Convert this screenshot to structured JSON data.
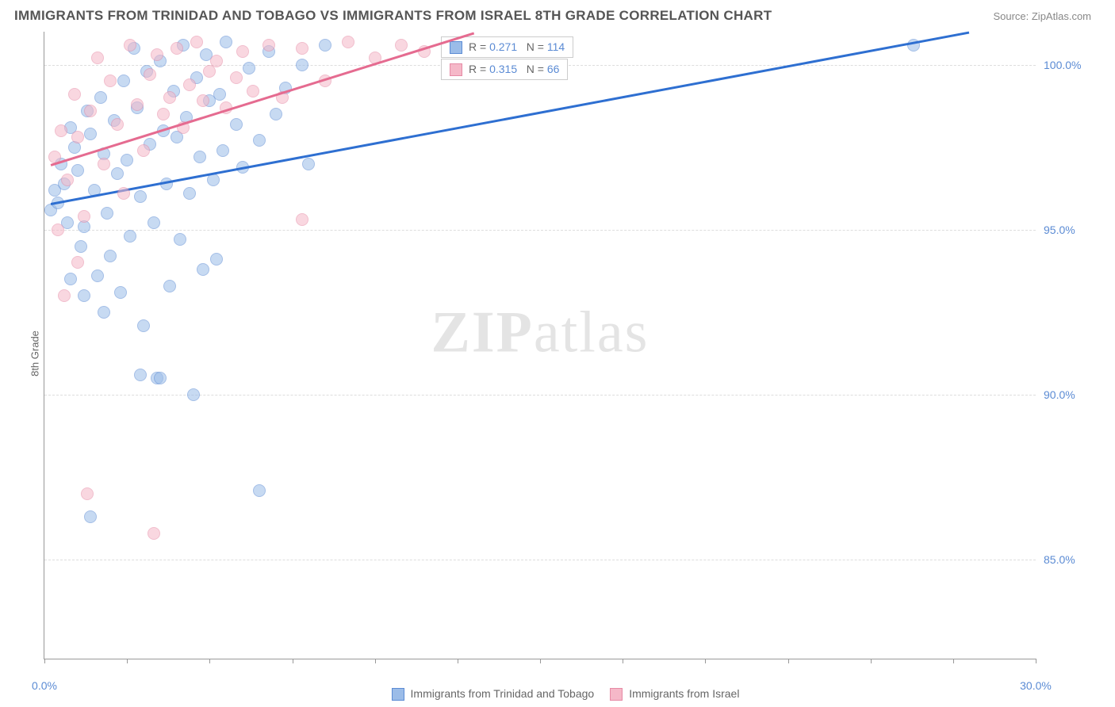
{
  "title": "IMMIGRANTS FROM TRINIDAD AND TOBAGO VS IMMIGRANTS FROM ISRAEL 8TH GRADE CORRELATION CHART",
  "source": "Source: ZipAtlas.com",
  "ylabel": "8th Grade",
  "watermark_a": "ZIP",
  "watermark_b": "atlas",
  "chart": {
    "type": "scatter",
    "xlim": [
      0,
      30
    ],
    "ylim": [
      82,
      101
    ],
    "background_color": "#ffffff",
    "grid_color": "#dddddd",
    "axis_color": "#999999",
    "tick_label_color": "#5b8bd4",
    "x_ticks": [
      0,
      2.5,
      5,
      7.5,
      10,
      12.5,
      15,
      17.5,
      20,
      22.5,
      25,
      27.5,
      30
    ],
    "x_tick_labels": {
      "0": "0.0%",
      "30": "30.0%"
    },
    "y_ticks": [
      85,
      90,
      95,
      100
    ],
    "y_tick_labels": {
      "85": "85.0%",
      "90": "90.0%",
      "95": "95.0%",
      "100": "100.0%"
    },
    "y_gridlines": [
      85,
      90,
      95,
      100
    ],
    "marker_size": 14,
    "marker_opacity": 0.55
  },
  "series": {
    "trinidad": {
      "label": "Immigrants from Trinidad and Tobago",
      "fill": "#9bbce8",
      "stroke": "#5b8bd4",
      "line_color": "#2e6fd1",
      "R": "0.271",
      "N": "114",
      "trend": {
        "x1": 0.2,
        "y1": 95.8,
        "x2": 28,
        "y2": 101
      },
      "points": [
        [
          0.2,
          95.6
        ],
        [
          0.3,
          96.2
        ],
        [
          0.4,
          95.8
        ],
        [
          0.5,
          97.0
        ],
        [
          0.6,
          96.4
        ],
        [
          0.7,
          95.2
        ],
        [
          0.8,
          98.1
        ],
        [
          0.9,
          97.5
        ],
        [
          1.0,
          96.8
        ],
        [
          1.1,
          94.5
        ],
        [
          1.2,
          95.1
        ],
        [
          1.3,
          98.6
        ],
        [
          1.4,
          97.9
        ],
        [
          1.5,
          96.2
        ],
        [
          1.6,
          93.6
        ],
        [
          1.7,
          99.0
        ],
        [
          1.8,
          97.3
        ],
        [
          1.9,
          95.5
        ],
        [
          2.0,
          94.2
        ],
        [
          2.1,
          98.3
        ],
        [
          2.2,
          96.7
        ],
        [
          2.3,
          93.1
        ],
        [
          2.4,
          99.5
        ],
        [
          2.5,
          97.1
        ],
        [
          2.6,
          94.8
        ],
        [
          2.7,
          100.5
        ],
        [
          2.8,
          98.7
        ],
        [
          2.9,
          96.0
        ],
        [
          3.0,
          92.1
        ],
        [
          3.1,
          99.8
        ],
        [
          3.2,
          97.6
        ],
        [
          3.3,
          95.2
        ],
        [
          3.4,
          90.5
        ],
        [
          3.5,
          100.1
        ],
        [
          3.6,
          98.0
        ],
        [
          3.7,
          96.4
        ],
        [
          3.8,
          93.3
        ],
        [
          3.9,
          99.2
        ],
        [
          4.0,
          97.8
        ],
        [
          4.1,
          94.7
        ],
        [
          4.2,
          100.6
        ],
        [
          4.3,
          98.4
        ],
        [
          4.4,
          96.1
        ],
        [
          4.5,
          90.0
        ],
        [
          4.6,
          99.6
        ],
        [
          4.7,
          97.2
        ],
        [
          4.8,
          93.8
        ],
        [
          4.9,
          100.3
        ],
        [
          5.0,
          98.9
        ],
        [
          5.1,
          96.5
        ],
        [
          5.2,
          94.1
        ],
        [
          5.3,
          99.1
        ],
        [
          5.4,
          97.4
        ],
        [
          5.5,
          100.7
        ],
        [
          5.8,
          98.2
        ],
        [
          6.0,
          96.9
        ],
        [
          6.2,
          99.9
        ],
        [
          6.5,
          97.7
        ],
        [
          6.8,
          100.4
        ],
        [
          7.0,
          98.5
        ],
        [
          7.3,
          99.3
        ],
        [
          7.8,
          100.0
        ],
        [
          8.0,
          97.0
        ],
        [
          8.5,
          100.6
        ],
        [
          0.8,
          93.5
        ],
        [
          1.2,
          93.0
        ],
        [
          1.8,
          92.5
        ],
        [
          1.4,
          86.3
        ],
        [
          2.9,
          90.6
        ],
        [
          3.5,
          90.5
        ],
        [
          6.5,
          87.1
        ],
        [
          26.3,
          100.6
        ]
      ]
    },
    "israel": {
      "label": "Immigrants from Israel",
      "fill": "#f5b8c8",
      "stroke": "#e68aa5",
      "line_color": "#e56b90",
      "R": "0.315",
      "N": "66",
      "trend": {
        "x1": 0.2,
        "y1": 97.0,
        "x2": 13,
        "y2": 101
      },
      "points": [
        [
          0.3,
          97.2
        ],
        [
          0.5,
          98.0
        ],
        [
          0.7,
          96.5
        ],
        [
          0.9,
          99.1
        ],
        [
          1.0,
          97.8
        ],
        [
          1.2,
          95.4
        ],
        [
          1.4,
          98.6
        ],
        [
          1.6,
          100.2
        ],
        [
          1.8,
          97.0
        ],
        [
          2.0,
          99.5
        ],
        [
          2.2,
          98.2
        ],
        [
          2.4,
          96.1
        ],
        [
          2.6,
          100.6
        ],
        [
          2.8,
          98.8
        ],
        [
          3.0,
          97.4
        ],
        [
          3.2,
          99.7
        ],
        [
          3.4,
          100.3
        ],
        [
          3.6,
          98.5
        ],
        [
          3.8,
          99.0
        ],
        [
          4.0,
          100.5
        ],
        [
          4.2,
          98.1
        ],
        [
          4.4,
          99.4
        ],
        [
          4.6,
          100.7
        ],
        [
          4.8,
          98.9
        ],
        [
          5.0,
          99.8
        ],
        [
          5.2,
          100.1
        ],
        [
          5.5,
          98.7
        ],
        [
          5.8,
          99.6
        ],
        [
          6.0,
          100.4
        ],
        [
          6.3,
          99.2
        ],
        [
          6.8,
          100.6
        ],
        [
          7.2,
          99.0
        ],
        [
          7.8,
          100.5
        ],
        [
          8.5,
          99.5
        ],
        [
          9.2,
          100.7
        ],
        [
          10.0,
          100.2
        ],
        [
          10.8,
          100.6
        ],
        [
          11.5,
          100.4
        ],
        [
          0.4,
          95.0
        ],
        [
          0.6,
          93.0
        ],
        [
          1.0,
          94.0
        ],
        [
          7.8,
          95.3
        ],
        [
          1.3,
          87.0
        ],
        [
          3.3,
          85.8
        ]
      ]
    }
  },
  "statbox": {
    "r_label": "R =",
    "n_label": "N ="
  },
  "legend_order": [
    "trinidad",
    "israel"
  ]
}
